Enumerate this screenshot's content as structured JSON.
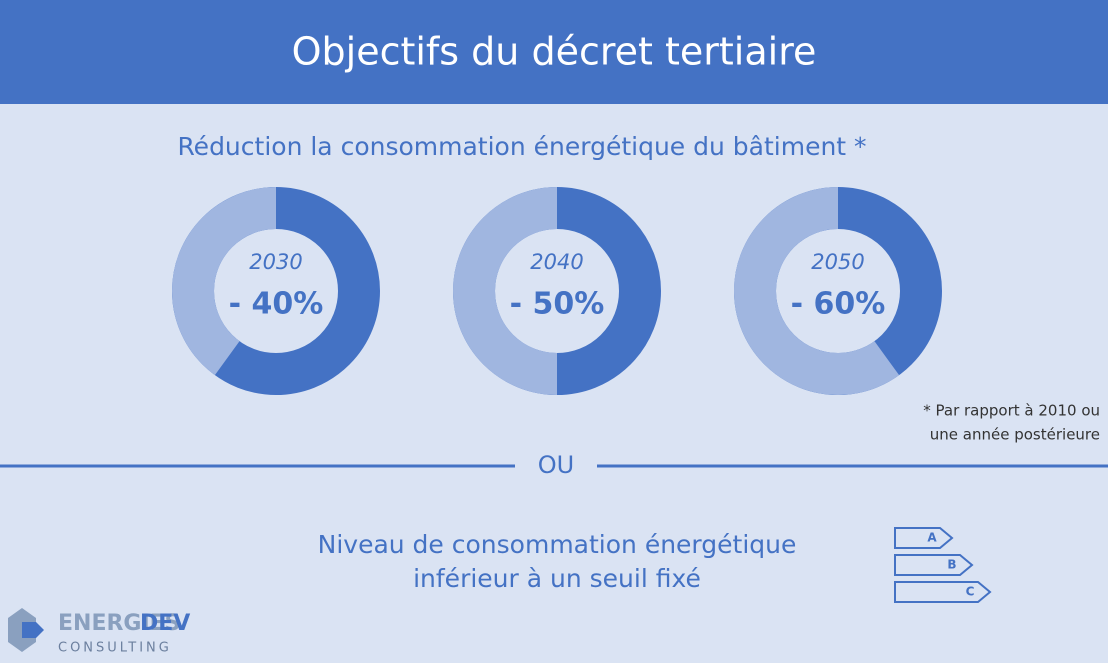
{
  "header": {
    "title": "Objectifs du décret tertiaire"
  },
  "subtitle": "Réduction la consommation énergétique du bâtiment *",
  "donuts": [
    {
      "year": "2030",
      "label": "- 40%",
      "value": -40
    },
    {
      "year": "2040",
      "label": "- 50%",
      "value": -50
    },
    {
      "year": "2050",
      "label": "- 60%",
      "value": -60
    }
  ],
  "footnote": [
    "* Par rapport à 2010 ou",
    "une année postérieure"
  ],
  "separator": "OU",
  "alternative": [
    "Niveau de consommation énergétique",
    "inférieur à un seuil fixé"
  ],
  "energy_labels": [
    "A",
    "B",
    "C"
  ],
  "logo": {
    "name_a": "ENERGIES",
    "name_b": "DEV",
    "sub": "CONSULTING"
  }
}
